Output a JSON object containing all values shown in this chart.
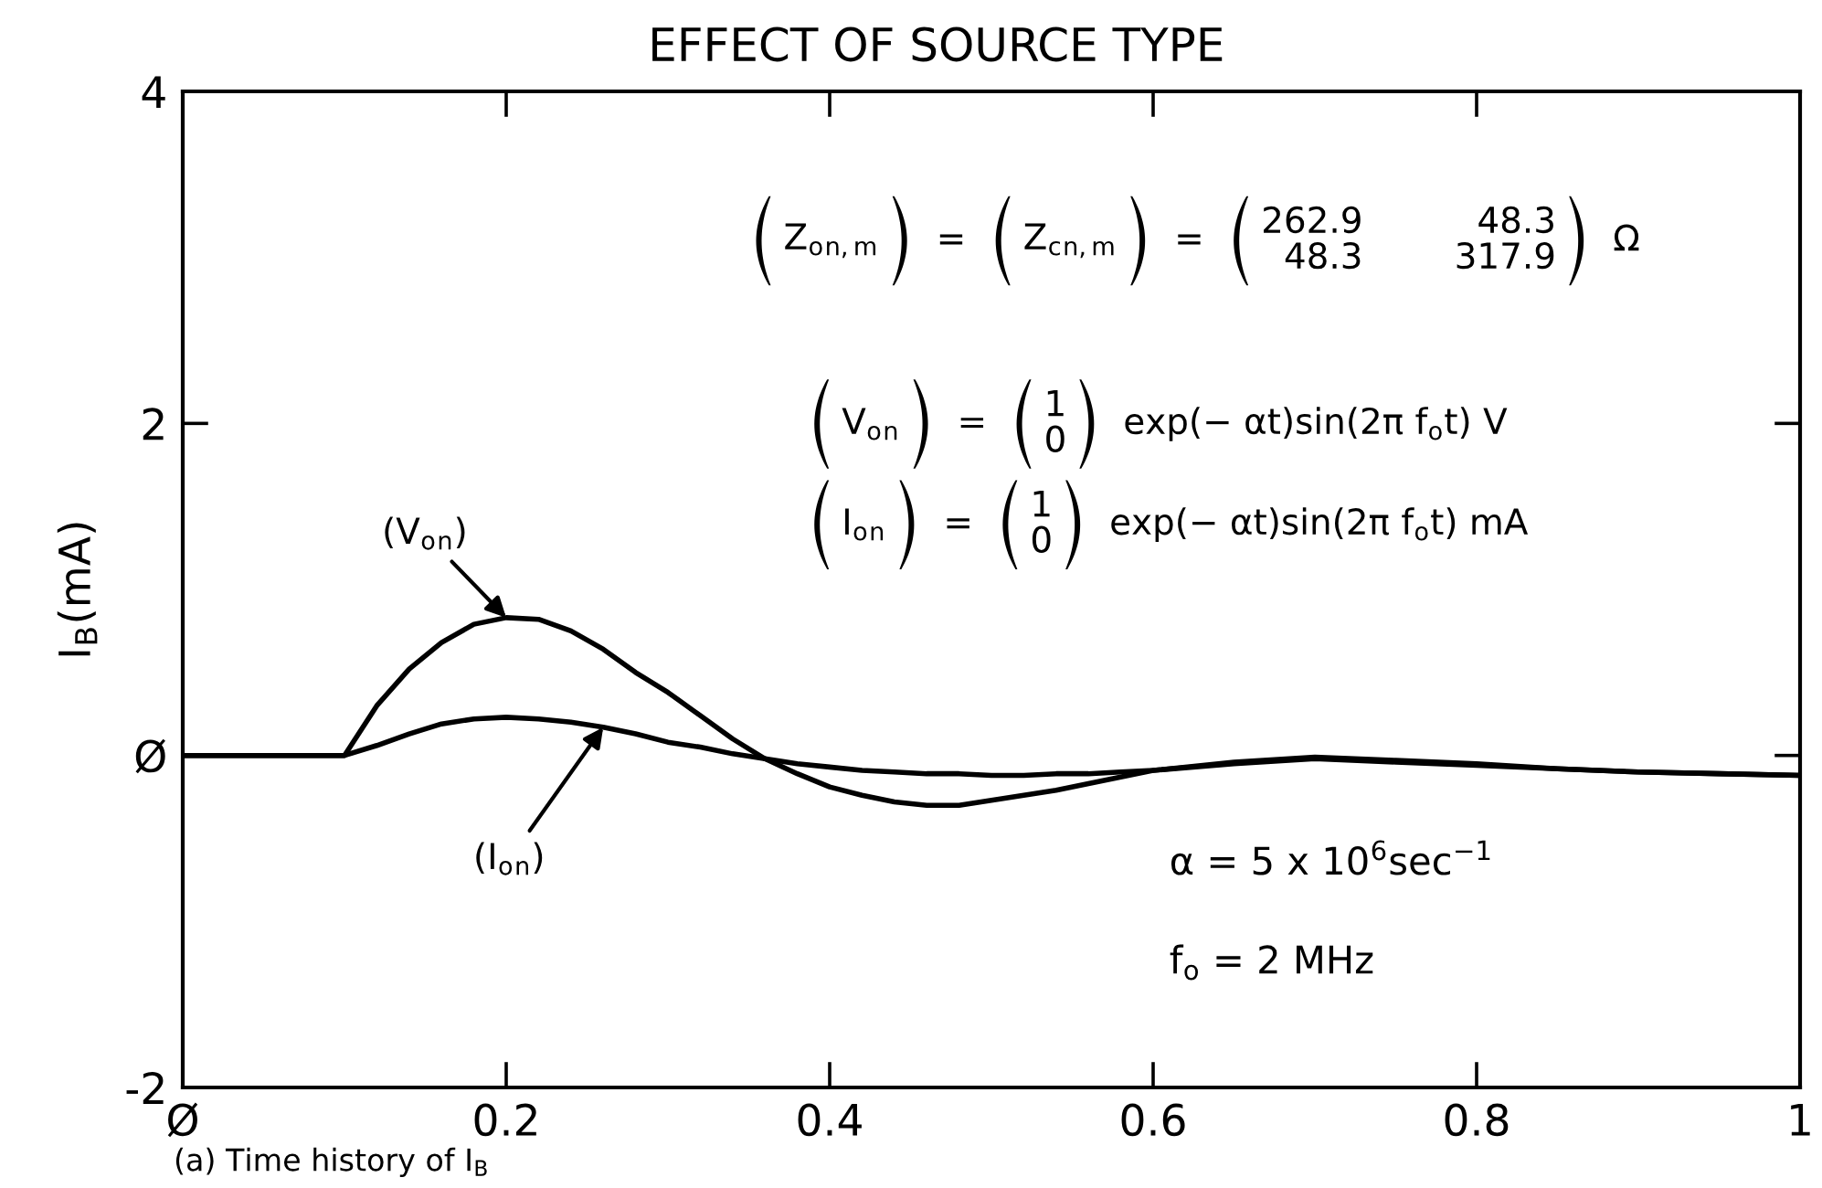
{
  "chart_data": {
    "type": "line",
    "title": "EFFECT OF SOURCE TYPE",
    "ylabel": "I$_{B}$(mA)",
    "xlim": [
      0,
      1
    ],
    "xticks": [
      {
        "value": 0,
        "label": "Ø"
      },
      0.2,
      0.4,
      0.6,
      0.8,
      1
    ],
    "ylim": [
      -2,
      4
    ],
    "yticks": [
      -2,
      {
        "value": 0,
        "label": "Ø"
      },
      2,
      4
    ],
    "line_style": "solid",
    "series": [
      {
        "color": "#000000",
        "x": [
          0,
          0.1,
          0.12,
          0.14,
          0.16,
          0.18,
          0.2,
          0.22,
          0.24,
          0.26,
          0.28,
          0.3,
          0.32,
          0.34,
          0.36,
          0.38,
          0.4,
          0.42,
          0.44,
          0.46,
          0.48,
          0.5,
          0.52,
          0.54,
          0.56,
          0.58,
          0.6,
          0.65,
          0.7,
          0.75,
          0.8,
          0.85,
          0.9,
          0.95,
          1.0
        ],
        "values": [
          0,
          0,
          0.3,
          0.52,
          0.68,
          0.79,
          0.83,
          0.82,
          0.75,
          0.64,
          0.5,
          0.38,
          0.24,
          0.1,
          -0.02,
          -0.11,
          -0.19,
          -0.24,
          -0.28,
          -0.3,
          -0.3,
          -0.27,
          -0.24,
          -0.21,
          -0.17,
          -0.13,
          -0.09,
          -0.04,
          -0.01,
          -0.03,
          -0.05,
          -0.08,
          -0.1,
          -0.11,
          -0.12
        ]
      },
      {
        "color": "#000000",
        "x": [
          0,
          0.1,
          0.12,
          0.14,
          0.16,
          0.18,
          0.2,
          0.22,
          0.24,
          0.26,
          0.28,
          0.3,
          0.32,
          0.34,
          0.36,
          0.38,
          0.4,
          0.42,
          0.44,
          0.46,
          0.48,
          0.5,
          0.52,
          0.54,
          0.56,
          0.58,
          0.6,
          0.65,
          0.7,
          0.75,
          0.8,
          0.85,
          0.9,
          0.95,
          1.0
        ],
        "values": [
          0,
          0,
          0.06,
          0.13,
          0.19,
          0.22,
          0.23,
          0.22,
          0.2,
          0.17,
          0.13,
          0.08,
          0.05,
          0.01,
          -0.02,
          -0.05,
          -0.07,
          -0.09,
          -0.1,
          -0.11,
          -0.11,
          -0.12,
          -0.12,
          -0.11,
          -0.11,
          -0.1,
          -0.09,
          -0.05,
          -0.02,
          -0.04,
          -0.06,
          -0.08,
          -0.1,
          -0.11,
          -0.12
        ]
      }
    ],
    "annotations": [
      "Z$_{o}$$_{n,m}$",
      "=",
      "Z$_{c}$$_{n,m}$",
      "=",
      "262.9\n48.3",
      "48.3\n317.9",
      "Ω",
      "V$_{o}$$_{n}$",
      "=",
      "1\n0",
      "exp(− αt)sin(2π f$_{o}$t) V",
      "I$_{o}$$_{n}$",
      "=",
      "1\n0",
      "exp(− αt)sin(2π f$_{o}$t) mA",
      "α = 5 x 10$^{6}$sec$^{−1}$",
      "f$_{o}$ = 2 MHz",
      {
        "text": "(V$_{o}$$_{n}$)",
        "x": 0.2,
        "y": 0.83
      },
      {
        "text": "(I$_{o}$$_{n}$)",
        "x": 0.26,
        "y": 0.17
      },
      "(a) Time history of I$_{B}$"
    ]
  }
}
